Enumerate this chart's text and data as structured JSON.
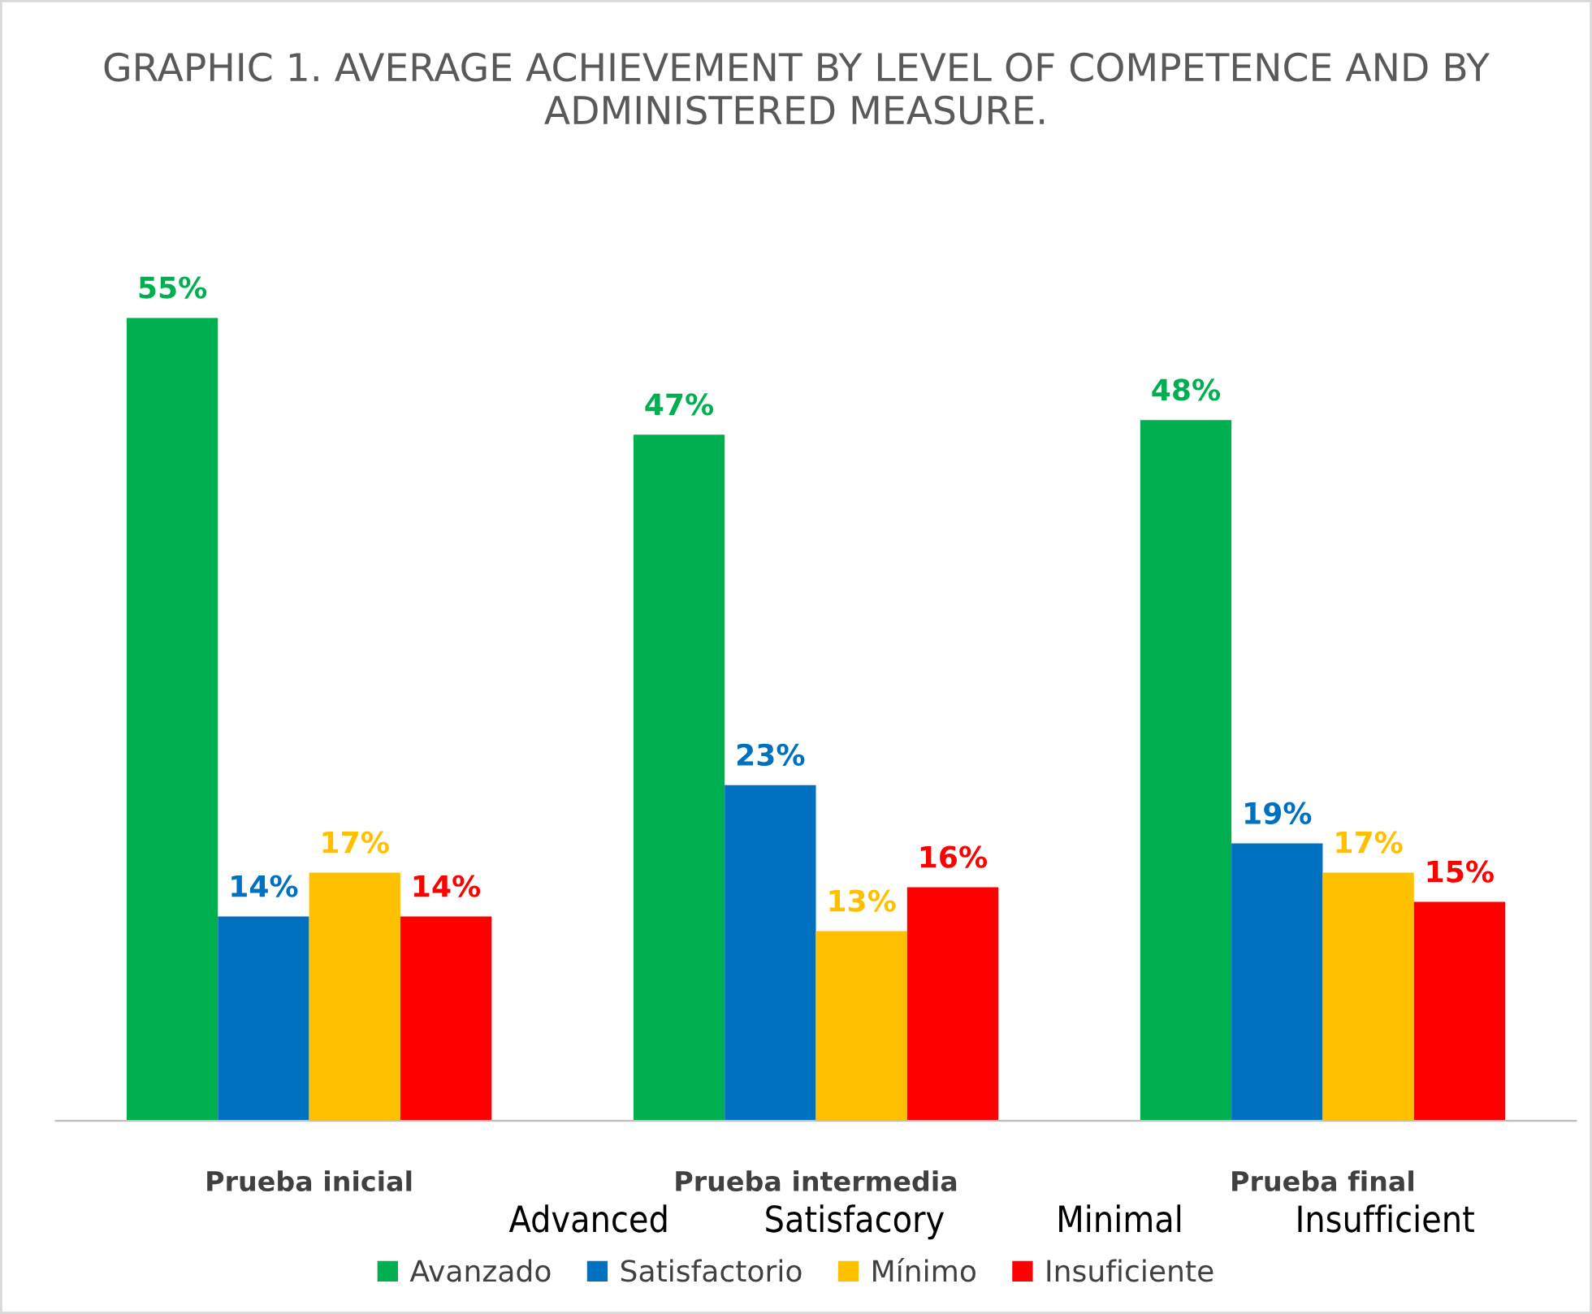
{
  "chart_data": {
    "type": "bar",
    "title": "GRAPHIC 1. AVERAGE ACHIEVEMENT BY LEVEL OF COMPETENCE AND BY ADMINISTERED MEASURE.",
    "categories": [
      "Prueba inicial",
      "Prueba intermedia",
      "Prueba final"
    ],
    "series": [
      {
        "name": "Avanzado",
        "color": "#00b050",
        "values": [
          55,
          47,
          48
        ],
        "value_labels": [
          "55%",
          "47%",
          "48%"
        ]
      },
      {
        "name": "Satisfactorio",
        "color": "#0070c0",
        "values": [
          14,
          23,
          19
        ],
        "value_labels": [
          "14%",
          "23%",
          "19%"
        ]
      },
      {
        "name": "Mínimo",
        "color": "#ffc000",
        "values": [
          17,
          13,
          17
        ],
        "value_labels": [
          "17%",
          "13%",
          "17%"
        ]
      },
      {
        "name": "Insuficiente",
        "color": "#ff0000",
        "values": [
          14,
          16,
          15
        ],
        "value_labels": [
          "14%",
          "16%",
          "15%"
        ]
      }
    ],
    "annotations": [
      "Advanced",
      "Satisfacory",
      "Minimal",
      "Insufficient"
    ],
    "grid": false,
    "legend": "bottom",
    "tick_labels": "x"
  }
}
